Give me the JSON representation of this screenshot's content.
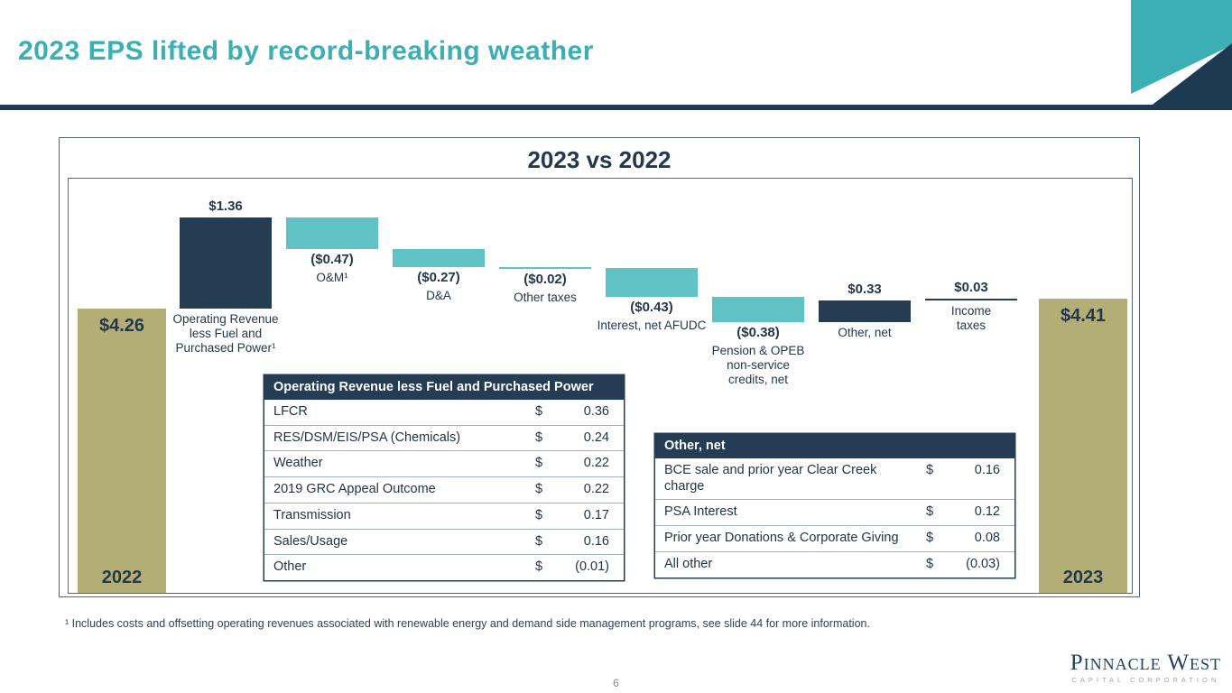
{
  "slide": {
    "title": "2023 EPS lifted by record-breaking weather",
    "page_number": "6",
    "footnote": "¹ Includes costs and offsetting operating revenues associated with renewable energy and demand side management programs, see slide 44 for more information.",
    "logo": {
      "line1": "Pinnacle West",
      "line2": "CAPITAL CORPORATION"
    }
  },
  "colors": {
    "accent_teal": "#3BAFB4",
    "bar_teal": "#5FC3C5",
    "navy": "#263C52",
    "olive": "#B3AE75",
    "text_navy": "#23384D"
  },
  "chart_data": {
    "type": "waterfall",
    "title": "2023 vs 2022",
    "unit": "EPS ($ per share)",
    "baseline": 0,
    "start": {
      "category": "2022",
      "value": 4.26,
      "value_label": "$4.26"
    },
    "steps": [
      {
        "category": "Operating Revenue less Fuel and Purchased Power¹",
        "value": 1.36,
        "value_label": "$1.36"
      },
      {
        "category": "O&M¹",
        "value": -0.47,
        "value_label": "($0.47)"
      },
      {
        "category": "D&A",
        "value": -0.27,
        "value_label": "($0.27)"
      },
      {
        "category": "Other taxes",
        "value": -0.02,
        "value_label": "($0.02)"
      },
      {
        "category": "Interest, net AFUDC",
        "value": -0.43,
        "value_label": "($0.43)"
      },
      {
        "category": "Pension & OPEB non-service credits, net",
        "value": -0.38,
        "value_label": "($0.38)"
      },
      {
        "category": "Other, net",
        "value": 0.33,
        "value_label": "$0.33"
      },
      {
        "category": "Income taxes",
        "value": 0.03,
        "value_label": "$0.03"
      }
    ],
    "end": {
      "category": "2023",
      "value": 4.41,
      "value_label": "$4.41"
    }
  },
  "tables": [
    {
      "header": "Operating Revenue less Fuel and Purchased Power",
      "rows": [
        {
          "label": "LFCR",
          "currency": "$",
          "amount": "0.36"
        },
        {
          "label": "RES/DSM/EIS/PSA (Chemicals)",
          "currency": "$",
          "amount": "0.24"
        },
        {
          "label": "Weather",
          "currency": "$",
          "amount": "0.22"
        },
        {
          "label": "2019 GRC Appeal Outcome",
          "currency": "$",
          "amount": "0.22"
        },
        {
          "label": "Transmission",
          "currency": "$",
          "amount": "0.17"
        },
        {
          "label": "Sales/Usage",
          "currency": "$",
          "amount": "0.16"
        },
        {
          "label": "Other",
          "currency": "$",
          "amount": "(0.01)"
        }
      ]
    },
    {
      "header": "Other, net",
      "rows": [
        {
          "label": "BCE sale and prior year Clear Creek charge",
          "currency": "$",
          "amount": "0.16"
        },
        {
          "label": "PSA Interest",
          "currency": "$",
          "amount": "0.12"
        },
        {
          "label": "Prior year Donations & Corporate Giving",
          "currency": "$",
          "amount": "0.08"
        },
        {
          "label": "All other",
          "currency": "$",
          "amount": "(0.03)"
        }
      ]
    }
  ]
}
